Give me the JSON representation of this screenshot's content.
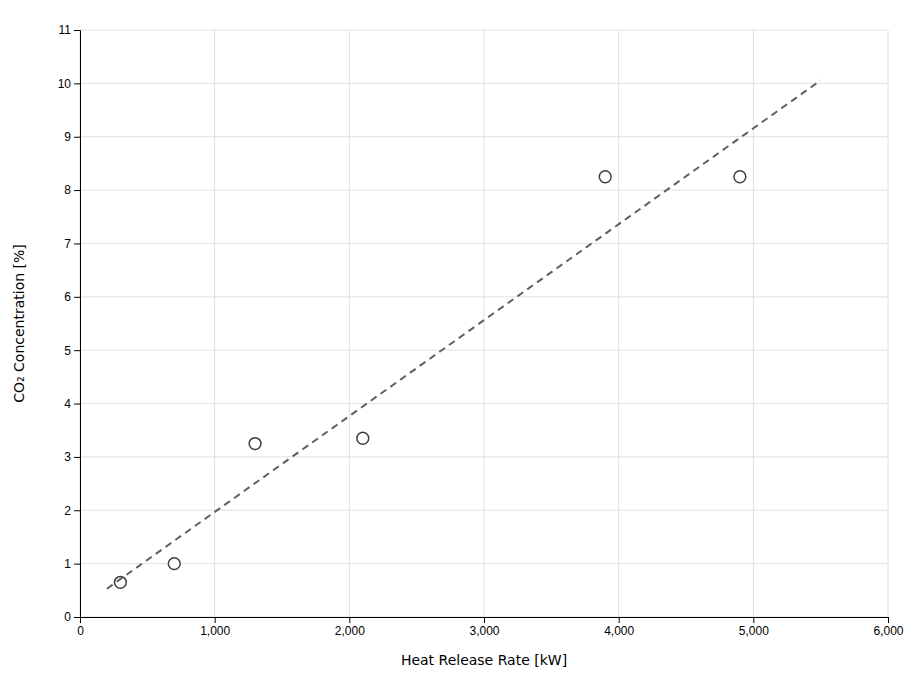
{
  "chart_data": {
    "type": "scatter",
    "xlabel": "Heat Release Rate [kW]",
    "ylabel": "CO₂ Concentration [%]",
    "series": [
      {
        "type": "scatter",
        "x": [
          300,
          700,
          1300,
          2100,
          3900,
          4900
        ],
        "values": [
          0.65,
          1.0,
          3.25,
          3.35,
          8.25,
          8.25
        ],
        "color": "#404040",
        "marker": "circle"
      },
      {
        "type": "line",
        "x": [
          200,
          5500
        ],
        "values": [
          0.5301008304,
          10.0565836299
        ],
        "color": "#606060",
        "line_style": "dashed"
      }
    ],
    "xlim": [
      0,
      6000
    ],
    "ylim": [
      0,
      11
    ],
    "xticks": [
      0,
      {
        "value": 1000,
        "label": "1,000"
      },
      {
        "value": 2000,
        "label": "2,000"
      },
      {
        "value": 3000,
        "label": "3,000"
      },
      {
        "value": 4000,
        "label": "4,000"
      },
      {
        "value": 5000,
        "label": "5,000"
      },
      {
        "value": 6000,
        "label": "6,000"
      }
    ],
    "yticks": [
      0,
      1,
      2,
      3,
      4,
      5,
      6,
      7,
      8,
      9,
      10,
      11
    ],
    "grid": true
  }
}
